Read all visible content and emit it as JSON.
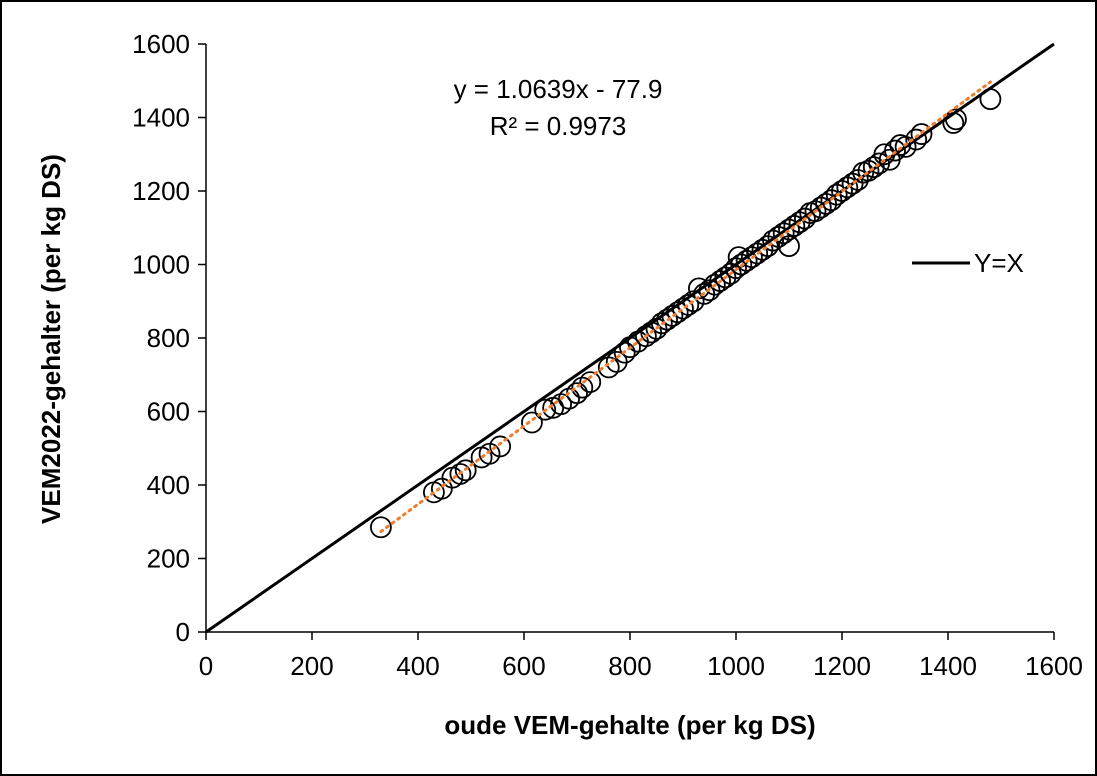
{
  "chart_data": {
    "type": "scatter",
    "xlabel": "oude VEM-gehalte (per kg DS)",
    "ylabel": "VEM2022-gehalter (per kg DS)",
    "xlim": [
      0,
      1600
    ],
    "ylim": [
      0,
      1600
    ],
    "x_ticks": [
      "0",
      "200",
      "400",
      "600",
      "800",
      "1000",
      "1200",
      "1400",
      "1600"
    ],
    "y_ticks": [
      "0",
      "200",
      "400",
      "600",
      "800",
      "1000",
      "1200",
      "1400",
      "1600"
    ],
    "grid": false,
    "legend_position": "right",
    "annotations": {
      "equation": "y = 1.0639x - 77.9",
      "r_squared": "R² = 0.9973"
    },
    "reference_line": {
      "name": "Y=X",
      "slope": 1,
      "intercept": 0,
      "color": "#000000"
    },
    "trendline": {
      "slope": 1.0639,
      "intercept": -77.9,
      "x_range": [
        330,
        1480
      ],
      "color": "#ED7D31",
      "style": "dotted"
    },
    "series": [
      {
        "marker": "open-circle",
        "color": "#000000",
        "points": [
          [
            330,
            285
          ],
          [
            430,
            380
          ],
          [
            445,
            390
          ],
          [
            465,
            420
          ],
          [
            480,
            430
          ],
          [
            490,
            440
          ],
          [
            520,
            475
          ],
          [
            535,
            485
          ],
          [
            555,
            505
          ],
          [
            615,
            570
          ],
          [
            640,
            605
          ],
          [
            655,
            610
          ],
          [
            670,
            620
          ],
          [
            685,
            635
          ],
          [
            700,
            650
          ],
          [
            710,
            665
          ],
          [
            725,
            680
          ],
          [
            760,
            720
          ],
          [
            775,
            735
          ],
          [
            790,
            760
          ],
          [
            800,
            775
          ],
          [
            815,
            790
          ],
          [
            830,
            805
          ],
          [
            840,
            815
          ],
          [
            850,
            825
          ],
          [
            860,
            840
          ],
          [
            870,
            850
          ],
          [
            880,
            860
          ],
          [
            890,
            870
          ],
          [
            900,
            880
          ],
          [
            910,
            890
          ],
          [
            920,
            900
          ],
          [
            930,
            935
          ],
          [
            940,
            920
          ],
          [
            950,
            930
          ],
          [
            960,
            945
          ],
          [
            970,
            955
          ],
          [
            980,
            965
          ],
          [
            990,
            975
          ],
          [
            1000,
            990
          ],
          [
            1005,
            1020
          ],
          [
            1010,
            1000
          ],
          [
            1020,
            1010
          ],
          [
            1030,
            1020
          ],
          [
            1040,
            1030
          ],
          [
            1050,
            1040
          ],
          [
            1060,
            1050
          ],
          [
            1070,
            1065
          ],
          [
            1080,
            1075
          ],
          [
            1090,
            1085
          ],
          [
            1100,
            1050
          ],
          [
            1100,
            1095
          ],
          [
            1110,
            1105
          ],
          [
            1120,
            1115
          ],
          [
            1130,
            1125
          ],
          [
            1140,
            1140
          ],
          [
            1150,
            1145
          ],
          [
            1160,
            1155
          ],
          [
            1170,
            1165
          ],
          [
            1180,
            1175
          ],
          [
            1190,
            1190
          ],
          [
            1200,
            1200
          ],
          [
            1210,
            1210
          ],
          [
            1220,
            1220
          ],
          [
            1230,
            1230
          ],
          [
            1240,
            1250
          ],
          [
            1250,
            1255
          ],
          [
            1260,
            1265
          ],
          [
            1270,
            1275
          ],
          [
            1280,
            1300
          ],
          [
            1290,
            1285
          ],
          [
            1300,
            1310
          ],
          [
            1310,
            1325
          ],
          [
            1320,
            1320
          ],
          [
            1340,
            1340
          ],
          [
            1350,
            1355
          ],
          [
            1410,
            1385
          ],
          [
            1415,
            1395
          ],
          [
            1480,
            1450
          ]
        ]
      }
    ]
  }
}
